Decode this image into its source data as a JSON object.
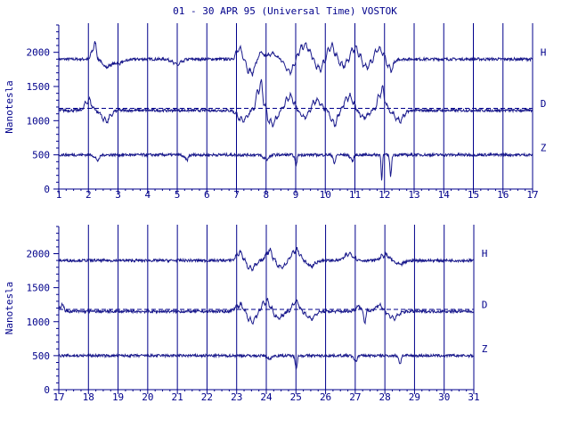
{
  "title": "01 - 30 APR 95 (Universal Time) VOSTOK",
  "colors": {
    "ink": "#00008b",
    "trace": "#1a1a8c",
    "background": "#ffffff"
  },
  "chart_data": [
    {
      "type": "line",
      "ylabel": "Nanotesla",
      "xlabel": "",
      "ylim": [
        0,
        2400
      ],
      "yticks": [
        0,
        500,
        1000,
        1500,
        2000
      ],
      "ytick_labels": [
        "0",
        "500",
        "1000",
        "1500",
        "2000"
      ],
      "xlim": [
        1,
        17
      ],
      "xticks": [
        1,
        2,
        3,
        4,
        5,
        6,
        7,
        8,
        9,
        10,
        11,
        12,
        13,
        14,
        15,
        16,
        17
      ],
      "xtick_labels": [
        "1",
        "2",
        "3",
        "4",
        "5",
        "6",
        "7",
        "8",
        "9",
        "10",
        "11",
        "12",
        "13",
        "14",
        "15",
        "16",
        "17"
      ],
      "grid": "vertical lines at each day",
      "reference_lines": [
        {
          "component": "D",
          "y": 1180,
          "style": "dashed"
        }
      ],
      "series": [
        {
          "name": "H",
          "baseline": 1900,
          "events": [
            [
              2.2,
              220,
              0.1
            ],
            [
              2.6,
              -100,
              0.2
            ],
            [
              7.1,
              150,
              0.15
            ],
            [
              7.5,
              -200,
              0.2
            ],
            [
              7.8,
              100,
              0.15
            ],
            [
              8.2,
              80,
              0.2
            ],
            [
              8.8,
              -180,
              0.2
            ],
            [
              9.3,
              200,
              0.25
            ],
            [
              9.8,
              -150,
              0.2
            ],
            [
              10.2,
              180,
              0.2
            ],
            [
              10.6,
              -100,
              0.2
            ],
            [
              11.0,
              160,
              0.2
            ],
            [
              11.4,
              -120,
              0.2
            ],
            [
              11.8,
              150,
              0.2
            ],
            [
              12.2,
              -150,
              0.15
            ],
            [
              5.0,
              -80,
              0.2
            ],
            [
              3.0,
              -60,
              0.3
            ]
          ]
        },
        {
          "name": "D",
          "baseline": 1150,
          "events": [
            [
              2.0,
              150,
              0.15
            ],
            [
              2.6,
              -150,
              0.2
            ],
            [
              7.2,
              -150,
              0.2
            ],
            [
              7.8,
              380,
              0.15
            ],
            [
              8.2,
              -200,
              0.2
            ],
            [
              8.8,
              200,
              0.2
            ],
            [
              9.3,
              -100,
              0.2
            ],
            [
              9.7,
              150,
              0.2
            ],
            [
              10.3,
              -200,
              0.15
            ],
            [
              10.8,
              200,
              0.2
            ],
            [
              11.3,
              -100,
              0.2
            ],
            [
              11.9,
              300,
              0.15
            ],
            [
              12.5,
              -150,
              0.2
            ]
          ]
        },
        {
          "name": "Z",
          "baseline": 500,
          "events": [
            [
              2.3,
              -80,
              0.1
            ],
            [
              5.3,
              -70,
              0.1
            ],
            [
              8.0,
              -60,
              0.15
            ],
            [
              9.0,
              -150,
              0.05
            ],
            [
              10.3,
              -130,
              0.05
            ],
            [
              10.9,
              -80,
              0.08
            ],
            [
              11.9,
              -350,
              0.03
            ],
            [
              12.2,
              -300,
              0.04
            ]
          ]
        }
      ]
    },
    {
      "type": "line",
      "ylabel": "Nanotesla",
      "xlabel": "",
      "ylim": [
        0,
        2400
      ],
      "yticks": [
        0,
        500,
        1000,
        1500,
        2000
      ],
      "ytick_labels": [
        "0",
        "500",
        "1000",
        "1500",
        "2000"
      ],
      "xlim": [
        17,
        31
      ],
      "xticks": [
        17,
        18,
        19,
        20,
        21,
        22,
        23,
        24,
        25,
        26,
        27,
        28,
        29,
        30,
        31
      ],
      "xtick_labels": [
        "17",
        "18",
        "19",
        "20",
        "21",
        "22",
        "23",
        "24",
        "25",
        "26",
        "27",
        "28",
        "29",
        "30",
        "31"
      ],
      "grid": "vertical lines at each day",
      "reference_lines": [
        {
          "component": "D",
          "y": 1180,
          "style": "dashed"
        }
      ],
      "series": [
        {
          "name": "H",
          "baseline": 1900,
          "events": [
            [
              23.1,
              120,
              0.15
            ],
            [
              23.5,
              -120,
              0.2
            ],
            [
              24.1,
              150,
              0.15
            ],
            [
              24.5,
              -100,
              0.2
            ],
            [
              25.0,
              150,
              0.2
            ],
            [
              25.5,
              -80,
              0.2
            ],
            [
              26.8,
              100,
              0.2
            ],
            [
              28.0,
              80,
              0.2
            ],
            [
              28.5,
              -60,
              0.2
            ]
          ]
        },
        {
          "name": "D",
          "baseline": 1150,
          "events": [
            [
              17.1,
              100,
              0.1
            ],
            [
              23.1,
              100,
              0.2
            ],
            [
              23.5,
              -150,
              0.2
            ],
            [
              24.0,
              150,
              0.2
            ],
            [
              24.4,
              -100,
              0.2
            ],
            [
              25.0,
              150,
              0.15
            ],
            [
              25.5,
              -100,
              0.2
            ],
            [
              27.2,
              100,
              0.2
            ],
            [
              27.3,
              -200,
              0.08
            ],
            [
              27.8,
              100,
              0.15
            ],
            [
              28.3,
              -100,
              0.2
            ]
          ]
        },
        {
          "name": "Z",
          "baseline": 500,
          "events": [
            [
              24.1,
              -50,
              0.1
            ],
            [
              25.0,
              -170,
              0.05
            ],
            [
              27.0,
              -80,
              0.08
            ],
            [
              28.5,
              -120,
              0.05
            ]
          ]
        }
      ]
    }
  ]
}
